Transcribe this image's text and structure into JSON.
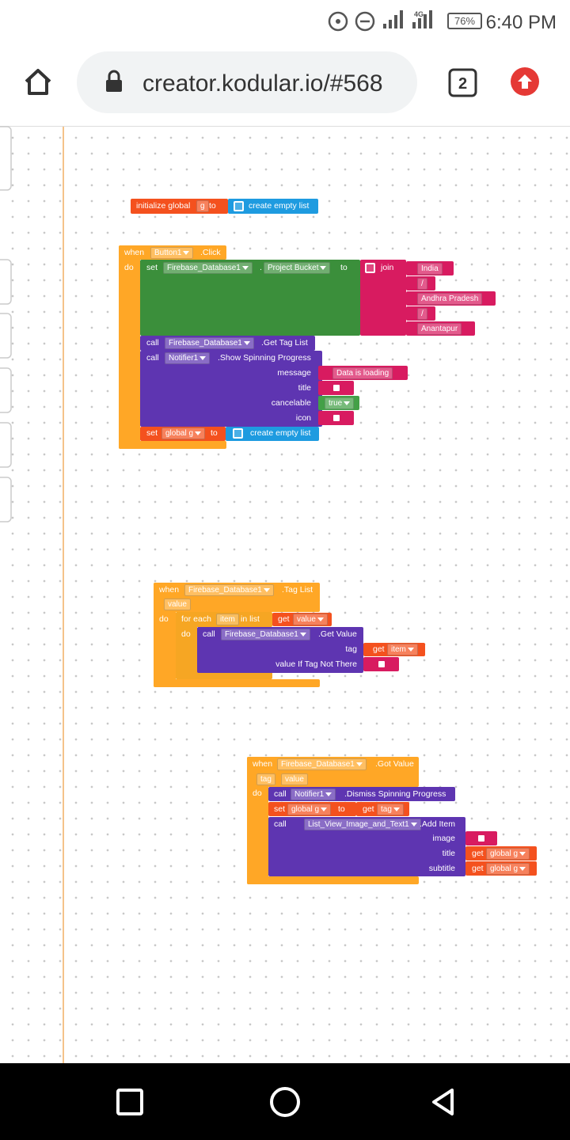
{
  "status_bar": {
    "network": "4G",
    "battery": "76%",
    "time": "6:40 PM"
  },
  "browser": {
    "url": "creator.kodular.io/#568",
    "tab_count": "2"
  },
  "workspace": {
    "init_global": {
      "keyword": "initialize global",
      "name": "g",
      "to": "to",
      "value": "create empty list"
    },
    "button_click": {
      "when": "when",
      "component": "Button1",
      "event": ".Click",
      "do": "do",
      "set_bucket": {
        "set": "set",
        "component": "Firebase_Database1",
        "dot": ".",
        "property": "Project Bucket",
        "to": "to",
        "join": "join",
        "items": [
          "India",
          "/",
          "Andhra Pradesh",
          "/",
          "Anantapur"
        ]
      },
      "get_tag_list": {
        "call": "call",
        "component": "Firebase_Database1",
        "method": ".Get Tag List"
      },
      "show_progress": {
        "call": "call",
        "component": "Notifier1",
        "method": ".Show Spinning Progress",
        "params": [
          "message",
          "title",
          "cancelable",
          "icon"
        ],
        "message": "Data is loading",
        "cancelable": "true"
      },
      "reset_global": {
        "set": "set",
        "variable": "global g",
        "to": "to",
        "value": "create empty list"
      }
    },
    "tag_list": {
      "when": "when",
      "component": "Firebase_Database1",
      "event": ".Tag List",
      "param": "value",
      "do": "do",
      "for_each": {
        "keyword": "for each",
        "variable": "item",
        "in_list": "in list",
        "get": "get",
        "list": "value",
        "do": "do"
      },
      "get_value": {
        "call": "call",
        "component": "Firebase_Database1",
        "method": ".Get Value",
        "params": [
          "tag",
          "value If Tag Not There"
        ],
        "get": "get",
        "tag": "item"
      }
    },
    "got_value": {
      "when": "when",
      "component": "Firebase_Database1",
      "event": ".Got Value",
      "params": [
        "tag",
        "value"
      ],
      "do": "do",
      "dismiss": {
        "call": "call",
        "component": "Notifier1",
        "method": ".Dismiss Spinning Progress"
      },
      "set_global": {
        "set": "set",
        "variable": "global g",
        "to": "to",
        "get": "get",
        "value": "tag"
      },
      "add_item": {
        "call": "call",
        "component": "List_View_Image_and_Text1",
        "method": ".Add Item",
        "params": [
          "image",
          "title",
          "subtitle"
        ],
        "title_get": "get",
        "title_value": "global g",
        "subtitle_get": "get",
        "subtitle_value": "global g"
      }
    }
  }
}
